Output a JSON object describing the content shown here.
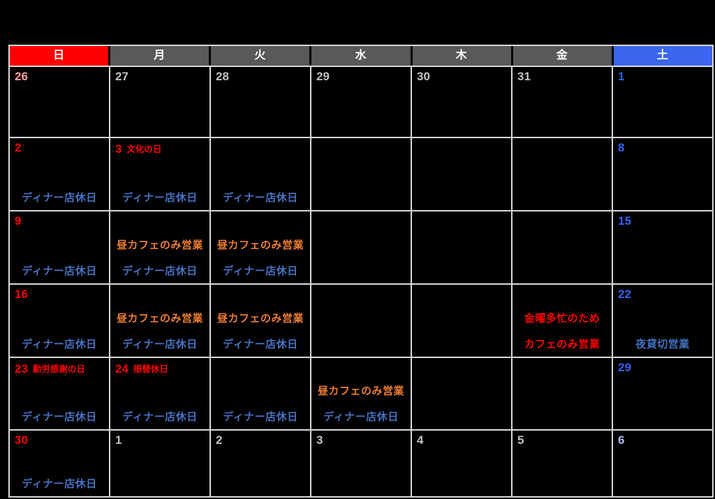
{
  "calendar": {
    "weekday_header": [
      {
        "label": "日",
        "bg": "#FF0000"
      },
      {
        "label": "月",
        "bg": "#595959"
      },
      {
        "label": "火",
        "bg": "#595959"
      },
      {
        "label": "水",
        "bg": "#595959"
      },
      {
        "label": "木",
        "bg": "#595959"
      },
      {
        "label": "金",
        "bg": "#595959"
      },
      {
        "label": "土",
        "bg": "#3A66F0"
      }
    ],
    "colors": {
      "background": "#000000",
      "grid_line": "#D9D9D9",
      "sunday_date": "#FF0000",
      "saturday_date": "#2F63F2",
      "adjacent_month_date": "#C0C0C0",
      "adjacent_sunday_date": "#FF9D9D",
      "adjacent_saturday_date": "#A8BFF2",
      "holiday_text": "#FF0000",
      "note_blue": "#4472C4",
      "note_orange": "#ED7D31",
      "note_red": "#FF0000"
    },
    "note_texts": {
      "dinner_closed": "ディナー店休日",
      "lunch_cafe_only": "昼カフェのみ営業",
      "night_private_booking": "夜貸切営業",
      "friday_busy_reason": "金曜多忙のため",
      "cafe_only": "カフェのみ営業"
    },
    "weeks": [
      {
        "days": [
          {
            "date": "26",
            "style": "sun-adj",
            "holiday": "",
            "notes": []
          },
          {
            "date": "27",
            "style": "adj",
            "holiday": "",
            "notes": []
          },
          {
            "date": "28",
            "style": "adj",
            "holiday": "",
            "notes": []
          },
          {
            "date": "29",
            "style": "adj",
            "holiday": "",
            "notes": []
          },
          {
            "date": "30",
            "style": "adj",
            "holiday": "",
            "notes": []
          },
          {
            "date": "31",
            "style": "adj",
            "holiday": "",
            "notes": []
          },
          {
            "date": "1",
            "style": "sat",
            "holiday": "",
            "notes": []
          }
        ]
      },
      {
        "days": [
          {
            "date": "2",
            "style": "sun",
            "holiday": "",
            "notes": [
              {
                "text": "ディナー店休日",
                "style": "blue"
              }
            ]
          },
          {
            "date": "3",
            "style": "sun",
            "holiday": "文化の日",
            "notes": [
              {
                "text": "ディナー店休日",
                "style": "blue"
              }
            ]
          },
          {
            "date": "",
            "style": "",
            "holiday": "",
            "notes": [
              {
                "text": "ディナー店休日",
                "style": "blue"
              }
            ]
          },
          {
            "date": "",
            "style": "",
            "holiday": "",
            "notes": []
          },
          {
            "date": "",
            "style": "",
            "holiday": "",
            "notes": []
          },
          {
            "date": "",
            "style": "",
            "holiday": "",
            "notes": []
          },
          {
            "date": "8",
            "style": "sat",
            "holiday": "",
            "notes": []
          }
        ]
      },
      {
        "days": [
          {
            "date": "9",
            "style": "sun",
            "holiday": "",
            "notes": [
              {
                "text": "ディナー店休日",
                "style": "blue"
              }
            ]
          },
          {
            "date": "",
            "style": "",
            "holiday": "",
            "notes": [
              {
                "text": "昼カフェのみ営業",
                "style": "orange"
              },
              {
                "text": "ディナー店休日",
                "style": "blue"
              }
            ]
          },
          {
            "date": "",
            "style": "",
            "holiday": "",
            "notes": [
              {
                "text": "昼カフェのみ営業",
                "style": "orange"
              },
              {
                "text": "ディナー店休日",
                "style": "blue"
              }
            ]
          },
          {
            "date": "",
            "style": "",
            "holiday": "",
            "notes": []
          },
          {
            "date": "",
            "style": "",
            "holiday": "",
            "notes": []
          },
          {
            "date": "",
            "style": "",
            "holiday": "",
            "notes": []
          },
          {
            "date": "15",
            "style": "sat",
            "holiday": "",
            "notes": []
          }
        ]
      },
      {
        "days": [
          {
            "date": "16",
            "style": "sun",
            "holiday": "",
            "notes": [
              {
                "text": "ディナー店休日",
                "style": "blue"
              }
            ]
          },
          {
            "date": "",
            "style": "",
            "holiday": "",
            "notes": [
              {
                "text": "昼カフェのみ営業",
                "style": "orange"
              },
              {
                "text": "ディナー店休日",
                "style": "blue"
              }
            ]
          },
          {
            "date": "",
            "style": "",
            "holiday": "",
            "notes": [
              {
                "text": "昼カフェのみ営業",
                "style": "orange"
              },
              {
                "text": "ディナー店休日",
                "style": "blue"
              }
            ]
          },
          {
            "date": "",
            "style": "",
            "holiday": "",
            "notes": []
          },
          {
            "date": "",
            "style": "",
            "holiday": "",
            "notes": []
          },
          {
            "date": "",
            "style": "",
            "holiday": "",
            "notes": [
              {
                "text": "金曜多忙のため",
                "style": "red"
              },
              {
                "text": "カフェのみ営業",
                "style": "red"
              }
            ]
          },
          {
            "date": "22",
            "style": "sat",
            "holiday": "",
            "notes": [
              {
                "text": "夜貸切営業",
                "style": "blue"
              }
            ]
          }
        ]
      },
      {
        "days": [
          {
            "date": "23",
            "style": "sun",
            "holiday": "勤労感謝の日",
            "notes": [
              {
                "text": "ディナー店休日",
                "style": "blue"
              }
            ]
          },
          {
            "date": "24",
            "style": "sun",
            "holiday": "振替休日",
            "notes": [
              {
                "text": "ディナー店休日",
                "style": "blue"
              }
            ]
          },
          {
            "date": "",
            "style": "",
            "holiday": "",
            "notes": [
              {
                "text": "ディナー店休日",
                "style": "blue"
              }
            ]
          },
          {
            "date": "",
            "style": "",
            "holiday": "",
            "notes": [
              {
                "text": "昼カフェのみ営業",
                "style": "orange"
              },
              {
                "text": "ディナー店休日",
                "style": "blue"
              }
            ]
          },
          {
            "date": "",
            "style": "",
            "holiday": "",
            "notes": []
          },
          {
            "date": "",
            "style": "",
            "holiday": "",
            "notes": []
          },
          {
            "date": "29",
            "style": "sat",
            "holiday": "",
            "notes": []
          }
        ]
      },
      {
        "days": [
          {
            "date": "30",
            "style": "sun",
            "holiday": "",
            "notes": [
              {
                "text": "ディナー店休日",
                "style": "blue"
              }
            ]
          },
          {
            "date": "1",
            "style": "adj",
            "holiday": "",
            "notes": []
          },
          {
            "date": "2",
            "style": "adj",
            "holiday": "",
            "notes": []
          },
          {
            "date": "3",
            "style": "adj",
            "holiday": "",
            "notes": []
          },
          {
            "date": "4",
            "style": "adj",
            "holiday": "",
            "notes": []
          },
          {
            "date": "5",
            "style": "adj",
            "holiday": "",
            "notes": []
          },
          {
            "date": "6",
            "style": "sat-adj",
            "holiday": "",
            "notes": []
          }
        ]
      }
    ]
  }
}
